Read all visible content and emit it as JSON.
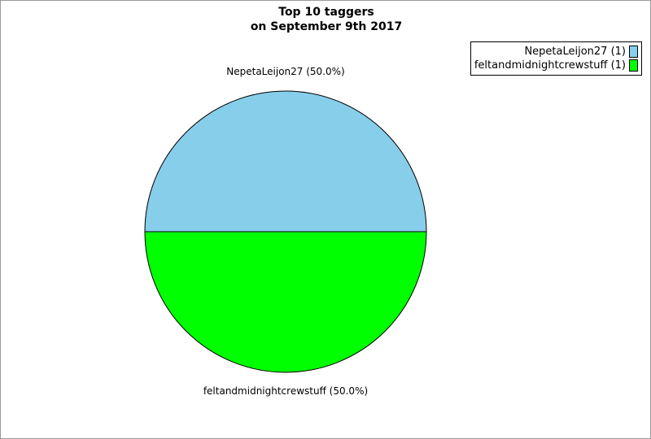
{
  "page": {
    "background": "#ffffff",
    "border_color": "#9a9a9a"
  },
  "title": {
    "line1": "Top 10 taggers",
    "line2": "on September 9th 2017"
  },
  "chart_data": {
    "type": "pie",
    "title": "Top 10 taggers on September 9th 2017",
    "slices": [
      {
        "label": "NepetaLeijon27",
        "value": 1,
        "percent": 50.0,
        "color": "#87CEEB",
        "callout": "NepetaLeijon27 (50.0%)"
      },
      {
        "label": "feltandmidnightcrewstuff",
        "value": 1,
        "percent": 50.0,
        "color": "#00FF00",
        "callout": "feltandmidnightcrewstuff (50.0%)"
      }
    ],
    "start_angle_deg": 0,
    "direction": "counterclockwise",
    "outline_color": "#000000",
    "legend_position": "top-right"
  },
  "legend": {
    "items": [
      {
        "label": "NepetaLeijon27 (1)",
        "color": "#87CEEB"
      },
      {
        "label": "feltandmidnightcrewstuff (1)",
        "color": "#00FF00"
      }
    ]
  }
}
